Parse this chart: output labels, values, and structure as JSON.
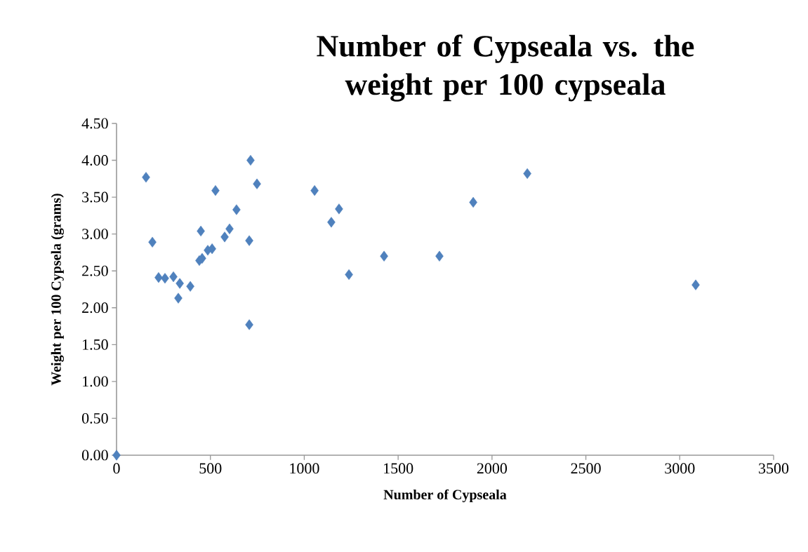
{
  "chart_data": {
    "type": "scatter",
    "title": "Number of Cypseala vs. the weight per 100 cypseala",
    "xlabel": "Number of Cypseala",
    "ylabel": "Weight per 100 Cypsela (grams)",
    "x": [
      0,
      157,
      191,
      224,
      258,
      303,
      337,
      329,
      393,
      449,
      441,
      456,
      486,
      509,
      576,
      602,
      639,
      527,
      707,
      714,
      748,
      707,
      1055,
      1144,
      1185,
      1238,
      1425,
      1720,
      1900,
      2188,
      3085
    ],
    "values": [
      0,
      3.77,
      2.89,
      2.41,
      2.4,
      2.42,
      2.33,
      2.13,
      2.29,
      3.04,
      2.64,
      2.67,
      2.78,
      2.8,
      2.96,
      3.07,
      3.33,
      3.59,
      2.91,
      4.0,
      3.68,
      1.77,
      3.59,
      3.16,
      3.34,
      2.45,
      2.7,
      2.7,
      3.43,
      3.82,
      2.31
    ],
    "color": "#4f81bd",
    "marker": "diamond",
    "xlim": [
      0,
      3500
    ],
    "ylim": [
      0,
      4.5
    ],
    "xticks": [
      0,
      500,
      1000,
      1500,
      2000,
      2500,
      3000,
      3500
    ],
    "yticks": [
      {
        "value": 0,
        "label": "0.00"
      },
      {
        "value": 0.5,
        "label": "0.50"
      },
      {
        "value": 1,
        "label": "1.00"
      },
      {
        "value": 1.5,
        "label": "1.50"
      },
      {
        "value": 2,
        "label": "2.00"
      },
      {
        "value": 2.5,
        "label": "2.50"
      },
      {
        "value": 3,
        "label": "3.00"
      },
      {
        "value": 3.5,
        "label": "3.50"
      },
      {
        "value": 4,
        "label": "4.00"
      },
      {
        "value": 4.5,
        "label": "4.50"
      }
    ]
  }
}
